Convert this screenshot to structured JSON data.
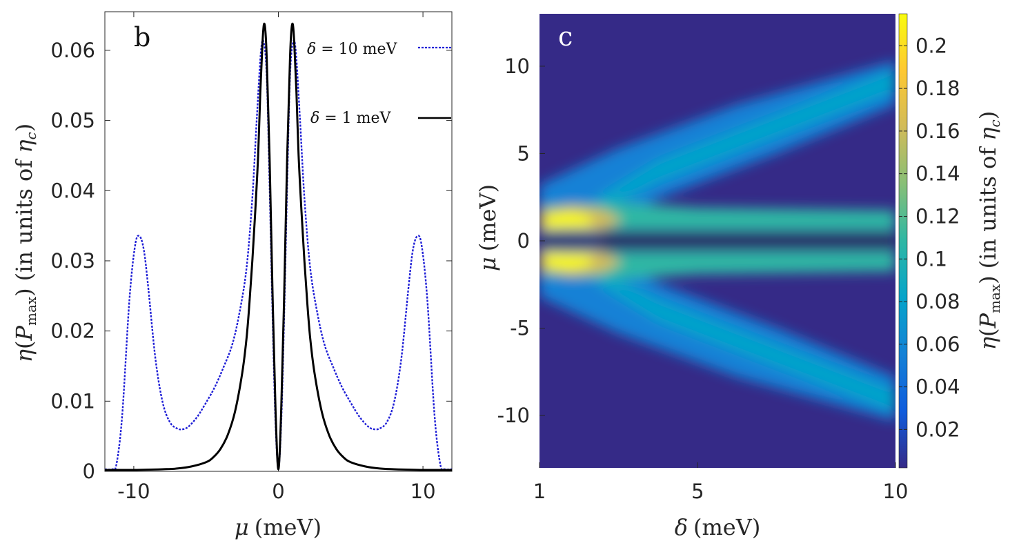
{
  "chart_data": [
    {
      "type": "line",
      "panel_label": "b",
      "xlabel": "μ (meV)",
      "ylabel": "η(P_max) (in units of η_c)",
      "ylabel_parts": {
        "eta": "η",
        "p": "P",
        "max": "max",
        "units": "(in units of ",
        "eta_c": "η",
        "c": "c",
        "close": ")"
      },
      "xlabel_parts": {
        "mu": "μ",
        "units": "(meV)"
      },
      "xlim": [
        -12,
        12
      ],
      "ylim": [
        0,
        0.0655
      ],
      "x_ticks": [
        -10,
        0,
        10
      ],
      "x_tick_labels": [
        "-10",
        "0",
        "10"
      ],
      "y_ticks": [
        0,
        0.01,
        0.02,
        0.03,
        0.04,
        0.05,
        0.06
      ],
      "y_tick_labels": [
        "0",
        "0.01",
        "0.02",
        "0.03",
        "0.04",
        "0.05",
        "0.06"
      ],
      "series": [
        {
          "name": "δ = 10 meV",
          "label_parts": {
            "delta": "δ",
            "rest": " = 10 meV"
          },
          "color": "#1f1fd6",
          "style": "dotted",
          "x": [
            -12,
            -11.5,
            -11.2,
            -10.8,
            -10.3,
            -9.9,
            -9.6,
            -9.3,
            -9.0,
            -8.5,
            -8,
            -7.5,
            -7,
            -6.6,
            -6.2,
            -5.6,
            -5,
            -4.4,
            -3.8,
            -3.2,
            -2.7,
            -2.2,
            -1.8,
            -1.5,
            -1.2,
            -1.0,
            -0.8,
            -0.6,
            -0.4,
            -0.2,
            0,
            0.2,
            0.4,
            0.6,
            0.8,
            1.0,
            1.2,
            1.5,
            1.8,
            2.2,
            2.7,
            3.2,
            3.8,
            4.4,
            5,
            5.6,
            6.2,
            6.6,
            7,
            7.5,
            8,
            8.5,
            9.0,
            9.3,
            9.6,
            9.9,
            10.3,
            10.8,
            11.2,
            11.5,
            12
          ],
          "y": [
            0.0003,
            0.0003,
            0.001,
            0.008,
            0.0245,
            0.0323,
            0.0335,
            0.0315,
            0.0262,
            0.016,
            0.0098,
            0.007,
            0.0061,
            0.006,
            0.0064,
            0.0078,
            0.0098,
            0.012,
            0.0148,
            0.018,
            0.0225,
            0.029,
            0.039,
            0.05,
            0.06,
            0.061,
            0.056,
            0.04,
            0.022,
            0.007,
            0.0005,
            0.007,
            0.022,
            0.04,
            0.056,
            0.061,
            0.06,
            0.05,
            0.039,
            0.029,
            0.0225,
            0.018,
            0.0148,
            0.012,
            0.0098,
            0.0078,
            0.0064,
            0.006,
            0.0061,
            0.007,
            0.0098,
            0.016,
            0.0262,
            0.0315,
            0.0335,
            0.0323,
            0.0245,
            0.008,
            0.001,
            0.0003,
            0.0003
          ]
        },
        {
          "name": "δ = 1 meV",
          "label_parts": {
            "delta": "δ",
            "rest": " = 1 meV"
          },
          "color": "#000000",
          "style": "solid",
          "x": [
            -12,
            -10,
            -8,
            -7,
            -6,
            -5,
            -4.5,
            -4,
            -3.5,
            -3,
            -2.5,
            -2.2,
            -2,
            -1.8,
            -1.6,
            -1.4,
            -1.25,
            -1.1,
            -1.0,
            -0.9,
            -0.8,
            -0.6,
            -0.4,
            -0.2,
            0,
            0.2,
            0.4,
            0.6,
            0.8,
            0.9,
            1.0,
            1.1,
            1.25,
            1.4,
            1.6,
            1.8,
            2,
            2.2,
            2.5,
            3,
            3.5,
            4,
            4.5,
            5,
            6,
            7,
            8,
            10,
            12
          ],
          "y": [
            0.0002,
            0.0002,
            0.0003,
            0.0004,
            0.0007,
            0.0013,
            0.002,
            0.0032,
            0.0052,
            0.0085,
            0.014,
            0.019,
            0.024,
            0.03,
            0.037,
            0.045,
            0.054,
            0.061,
            0.0637,
            0.0628,
            0.0585,
            0.044,
            0.025,
            0.009,
            0.0003,
            0.009,
            0.025,
            0.044,
            0.0585,
            0.0628,
            0.0637,
            0.061,
            0.054,
            0.045,
            0.037,
            0.03,
            0.024,
            0.019,
            0.014,
            0.0085,
            0.0052,
            0.0032,
            0.002,
            0.0013,
            0.0007,
            0.0004,
            0.0003,
            0.0002,
            0.0002
          ]
        }
      ]
    },
    {
      "type": "heatmap",
      "panel_label": "c",
      "xlabel": "δ (meV)",
      "ylabel": "μ (meV)",
      "xlabel_parts": {
        "delta": "δ",
        "units": "(meV)"
      },
      "ylabel_parts": {
        "mu": "μ",
        "units": "(meV)"
      },
      "xlim": [
        1,
        10
      ],
      "ylim": [
        -13,
        13
      ],
      "x_ticks": [
        1,
        5,
        10
      ],
      "x_tick_labels": [
        "1",
        "5",
        "10"
      ],
      "y_ticks": [
        -10,
        -5,
        0,
        5,
        10
      ],
      "y_tick_labels": [
        "-10",
        "-5",
        "0",
        "5",
        "10"
      ],
      "colorbar": {
        "label": "η(P_max) (in units of η_c)",
        "label_parts": {
          "eta": "η",
          "p": "P",
          "max": "max",
          "units": "(in units of ",
          "eta_c": "η",
          "c": "c",
          "close": ")"
        },
        "range": [
          0.002,
          0.215
        ],
        "ticks": [
          0.02,
          0.04,
          0.06,
          0.08,
          0.1,
          0.12,
          0.14,
          0.16,
          0.18,
          0.2
        ],
        "tick_labels": [
          "0.02",
          "0.04",
          "0.06",
          "0.08",
          "0.1",
          "0.12",
          "0.14",
          "0.16",
          "0.18",
          "0.2"
        ],
        "colormap": "parula",
        "colormap_colors": [
          "#352a87",
          "#0f5cdd",
          "#1481d6",
          "#06a4ca",
          "#2eb7a4",
          "#87bf77",
          "#d1bb59",
          "#fec832",
          "#f9fb0e"
        ]
      },
      "features": {
        "inner_branches": "peaks near μ ≈ ±1.1 meV at small δ (max ≈ 0.21 near δ ≈ 1.7 meV), continuing horizontally at ≈ 0.11",
        "outer_branches": "diverge linearly reaching μ ≈ ±9.5 meV at δ = 10 meV, value ≈ 0.08–0.11",
        "center": "near zero along μ = 0"
      }
    }
  ]
}
